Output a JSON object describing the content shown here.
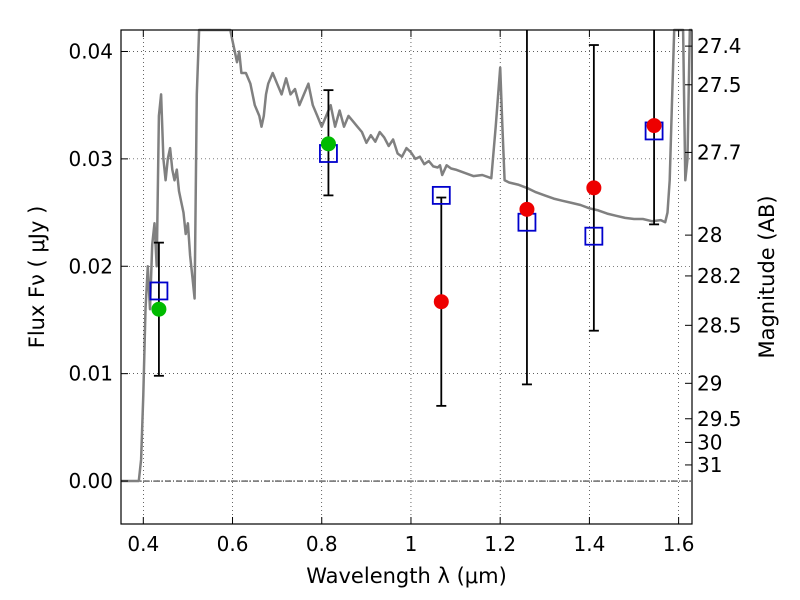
{
  "chart_data": {
    "type": "scatter",
    "xlabel": "Wavelength  λ (μm)",
    "ylabel": "Flux  Fν  ( μJy )",
    "ylabel_right": "Magnitude (AB)",
    "xlim": [
      0.35,
      1.63
    ],
    "ylim": [
      -0.004,
      0.042
    ],
    "grid": true,
    "x_ticks": [
      {
        "value": 0.4,
        "label": "0.4"
      },
      {
        "value": 0.6,
        "label": "0.6"
      },
      {
        "value": 0.8,
        "label": "0.8"
      },
      {
        "value": 1.0,
        "label": "1"
      },
      {
        "value": 1.2,
        "label": "1.2"
      },
      {
        "value": 1.4,
        "label": "1.4"
      },
      {
        "value": 1.6,
        "label": "1.6"
      }
    ],
    "y_ticks": [
      {
        "value": 0.0,
        "label": "0.00"
      },
      {
        "value": 0.01,
        "label": "0.01"
      },
      {
        "value": 0.02,
        "label": "0.02"
      },
      {
        "value": 0.03,
        "label": "0.03"
      },
      {
        "value": 0.04,
        "label": "0.04"
      }
    ],
    "mag_ticks": [
      {
        "value": 0.0405,
        "label": "27.4"
      },
      {
        "value": 0.0369,
        "label": "27.5"
      },
      {
        "value": 0.0306,
        "label": "27.7"
      },
      {
        "value": 0.0229,
        "label": "28"
      },
      {
        "value": 0.0191,
        "label": "28.2"
      },
      {
        "value": 0.0145,
        "label": "28.5"
      },
      {
        "value": 0.0091,
        "label": "29"
      },
      {
        "value": 0.0058,
        "label": "29.5"
      },
      {
        "value": 0.0036,
        "label": "30"
      },
      {
        "value": 0.0015,
        "label": "31"
      }
    ],
    "model_spectrum": {
      "color": "#808080",
      "x": [
        0.35,
        0.38,
        0.385,
        0.39,
        0.395,
        0.4,
        0.405,
        0.41,
        0.415,
        0.42,
        0.425,
        0.43,
        0.435,
        0.44,
        0.445,
        0.45,
        0.455,
        0.46,
        0.465,
        0.47,
        0.475,
        0.48,
        0.485,
        0.49,
        0.495,
        0.5,
        0.505,
        0.51,
        0.515,
        0.52,
        0.525,
        0.53,
        0.54,
        0.545,
        0.55,
        0.56,
        0.57,
        0.58,
        0.59,
        0.595,
        0.6,
        0.605,
        0.61,
        0.615,
        0.62,
        0.63,
        0.64,
        0.65,
        0.66,
        0.665,
        0.67,
        0.675,
        0.68,
        0.69,
        0.7,
        0.71,
        0.72,
        0.73,
        0.74,
        0.75,
        0.76,
        0.77,
        0.78,
        0.79,
        0.8,
        0.81,
        0.82,
        0.83,
        0.84,
        0.85,
        0.86,
        0.87,
        0.88,
        0.89,
        0.9,
        0.91,
        0.92,
        0.93,
        0.94,
        0.95,
        0.96,
        0.97,
        0.98,
        0.99,
        1.0,
        1.01,
        1.02,
        1.03,
        1.04,
        1.05,
        1.06,
        1.065,
        1.07,
        1.08,
        1.09,
        1.1,
        1.12,
        1.14,
        1.16,
        1.18,
        1.19,
        1.2,
        1.205,
        1.21,
        1.22,
        1.24,
        1.26,
        1.28,
        1.3,
        1.32,
        1.34,
        1.36,
        1.38,
        1.4,
        1.42,
        1.44,
        1.46,
        1.48,
        1.5,
        1.52,
        1.54,
        1.56,
        1.57,
        1.575,
        1.58,
        1.585,
        1.59,
        1.6,
        1.61,
        1.615,
        1.62,
        1.625,
        1.63
      ],
      "y": [
        0.0,
        0.0,
        0.0,
        0.0,
        0.002,
        0.008,
        0.016,
        0.02,
        0.016,
        0.022,
        0.024,
        0.02,
        0.034,
        0.036,
        0.03,
        0.028,
        0.03,
        0.031,
        0.029,
        0.028,
        0.029,
        0.027,
        0.026,
        0.025,
        0.023,
        0.024,
        0.021,
        0.019,
        0.017,
        0.036,
        0.042,
        0.042,
        0.042,
        0.042,
        0.042,
        0.042,
        0.042,
        0.042,
        0.042,
        0.042,
        0.041,
        0.04,
        0.039,
        0.04,
        0.038,
        0.038,
        0.037,
        0.035,
        0.034,
        0.033,
        0.034,
        0.036,
        0.037,
        0.038,
        0.037,
        0.036,
        0.0375,
        0.036,
        0.0365,
        0.035,
        0.036,
        0.037,
        0.035,
        0.034,
        0.033,
        0.034,
        0.035,
        0.033,
        0.0345,
        0.033,
        0.034,
        0.0335,
        0.033,
        0.0325,
        0.0315,
        0.0322,
        0.0316,
        0.0325,
        0.032,
        0.0312,
        0.0318,
        0.0305,
        0.0302,
        0.031,
        0.0306,
        0.03,
        0.0302,
        0.0295,
        0.0298,
        0.0293,
        0.0292,
        0.0294,
        0.0285,
        0.0294,
        0.0291,
        0.029,
        0.0287,
        0.0284,
        0.0285,
        0.0282,
        0.033,
        0.0385,
        0.033,
        0.028,
        0.0278,
        0.0276,
        0.0273,
        0.0269,
        0.0266,
        0.0263,
        0.0261,
        0.0259,
        0.0257,
        0.0254,
        0.0252,
        0.0249,
        0.0247,
        0.0245,
        0.0244,
        0.0244,
        0.0242,
        0.0243,
        0.0241,
        0.025,
        0.028,
        0.035,
        0.042,
        0.042,
        0.042,
        0.028,
        0.03,
        0.042,
        0.042
      ]
    },
    "error_bars": {
      "color": "#000000",
      "points": [
        {
          "x": 0.435,
          "low": 0.0098,
          "high": 0.0222
        },
        {
          "x": 0.815,
          "low": 0.0266,
          "high": 0.0364
        },
        {
          "x": 1.068,
          "low": 0.007,
          "high": 0.0264
        },
        {
          "x": 1.26,
          "low": 0.009,
          "high": 0.042
        },
        {
          "x": 1.41,
          "low": 0.014,
          "high": 0.0406
        },
        {
          "x": 1.545,
          "low": 0.0239,
          "high": 0.042
        }
      ]
    },
    "model_photometry": {
      "marker": "open-square",
      "color": "#0000cc",
      "points": [
        {
          "x": 0.435,
          "y": 0.0177
        },
        {
          "x": 0.815,
          "y": 0.0305
        },
        {
          "x": 1.068,
          "y": 0.0266
        },
        {
          "x": 1.26,
          "y": 0.0241
        },
        {
          "x": 1.41,
          "y": 0.0228
        },
        {
          "x": 1.545,
          "y": 0.0326
        }
      ]
    },
    "observed_optical": {
      "marker": "filled-circle",
      "color": "#00bb00",
      "points": [
        {
          "x": 0.435,
          "y": 0.016
        },
        {
          "x": 0.815,
          "y": 0.0314
        }
      ]
    },
    "observed_nir": {
      "marker": "filled-circle",
      "color": "#ee0000",
      "points": [
        {
          "x": 1.068,
          "y": 0.0167
        },
        {
          "x": 1.26,
          "y": 0.0253
        },
        {
          "x": 1.41,
          "y": 0.0273
        },
        {
          "x": 1.545,
          "y": 0.0331
        }
      ]
    }
  }
}
